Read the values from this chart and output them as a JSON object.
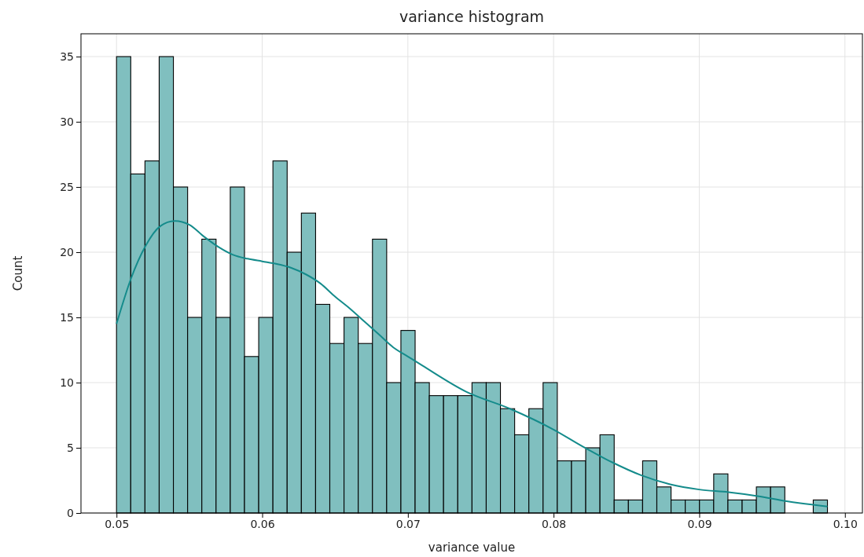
{
  "chart_data": {
    "type": "histogram",
    "title": "variance histogram",
    "xlabel": "variance value",
    "ylabel": "Count",
    "bins": [
      0.05,
      0.050976,
      0.051952,
      0.052928,
      0.053904,
      0.05488,
      0.055856,
      0.056832,
      0.057808,
      0.058784,
      0.05976,
      0.060736,
      0.061712,
      0.062688,
      0.063664,
      0.06464,
      0.065616,
      0.066592,
      0.067568,
      0.068544,
      0.06952,
      0.070496,
      0.071472,
      0.072448,
      0.073424,
      0.0744,
      0.075376,
      0.076352,
      0.077328,
      0.078304,
      0.07928,
      0.080256,
      0.081232,
      0.082208,
      0.083184,
      0.08416,
      0.085136,
      0.086112,
      0.087088,
      0.088064,
      0.08904,
      0.090016,
      0.090992,
      0.091968,
      0.092944,
      0.09392,
      0.094896,
      0.095872,
      0.096848,
      0.097824,
      0.0988
    ],
    "values": [
      35,
      26,
      27,
      35,
      25,
      15,
      21,
      15,
      25,
      12,
      15,
      27,
      20,
      23,
      16,
      13,
      15,
      13,
      21,
      10,
      14,
      10,
      9,
      9,
      9,
      10,
      10,
      8,
      6,
      8,
      10,
      4,
      4,
      5,
      6,
      1,
      1,
      4,
      2,
      1,
      1,
      1,
      3,
      1,
      1,
      2,
      2,
      0,
      0,
      1
    ],
    "color": "#80bfbf",
    "series": [
      {
        "type": "line",
        "color": "#148b8b",
        "x": [
          0.05,
          0.051,
          0.052,
          0.053,
          0.054,
          0.055,
          0.056,
          0.057,
          0.058,
          0.059,
          0.06,
          0.061,
          0.062,
          0.063,
          0.064,
          0.065,
          0.066,
          0.067,
          0.068,
          0.069,
          0.07,
          0.071,
          0.074,
          0.077,
          0.08,
          0.082,
          0.084,
          0.086,
          0.088,
          0.09,
          0.092,
          0.094,
          0.096,
          0.0988
        ],
        "values": [
          14.5,
          18.0,
          20.5,
          22.0,
          22.4,
          22.1,
          21.2,
          20.4,
          19.8,
          19.5,
          19.3,
          19.1,
          18.8,
          18.3,
          17.6,
          16.6,
          15.7,
          14.7,
          13.7,
          12.7,
          12.0,
          11.3,
          9.3,
          8.0,
          6.4,
          5.1,
          3.9,
          2.9,
          2.2,
          1.8,
          1.6,
          1.3,
          0.9,
          0.5
        ]
      }
    ],
    "xlim": [
      0.04756,
      0.1012
    ],
    "ylim": [
      0,
      36.75
    ],
    "xticks": [
      0.05,
      0.06,
      0.07,
      0.08,
      0.09,
      {
        "value": 0.1,
        "label": "0.10"
      }
    ],
    "yticks": [
      0,
      5,
      10,
      15,
      20,
      25,
      30,
      35
    ],
    "grid": true
  }
}
